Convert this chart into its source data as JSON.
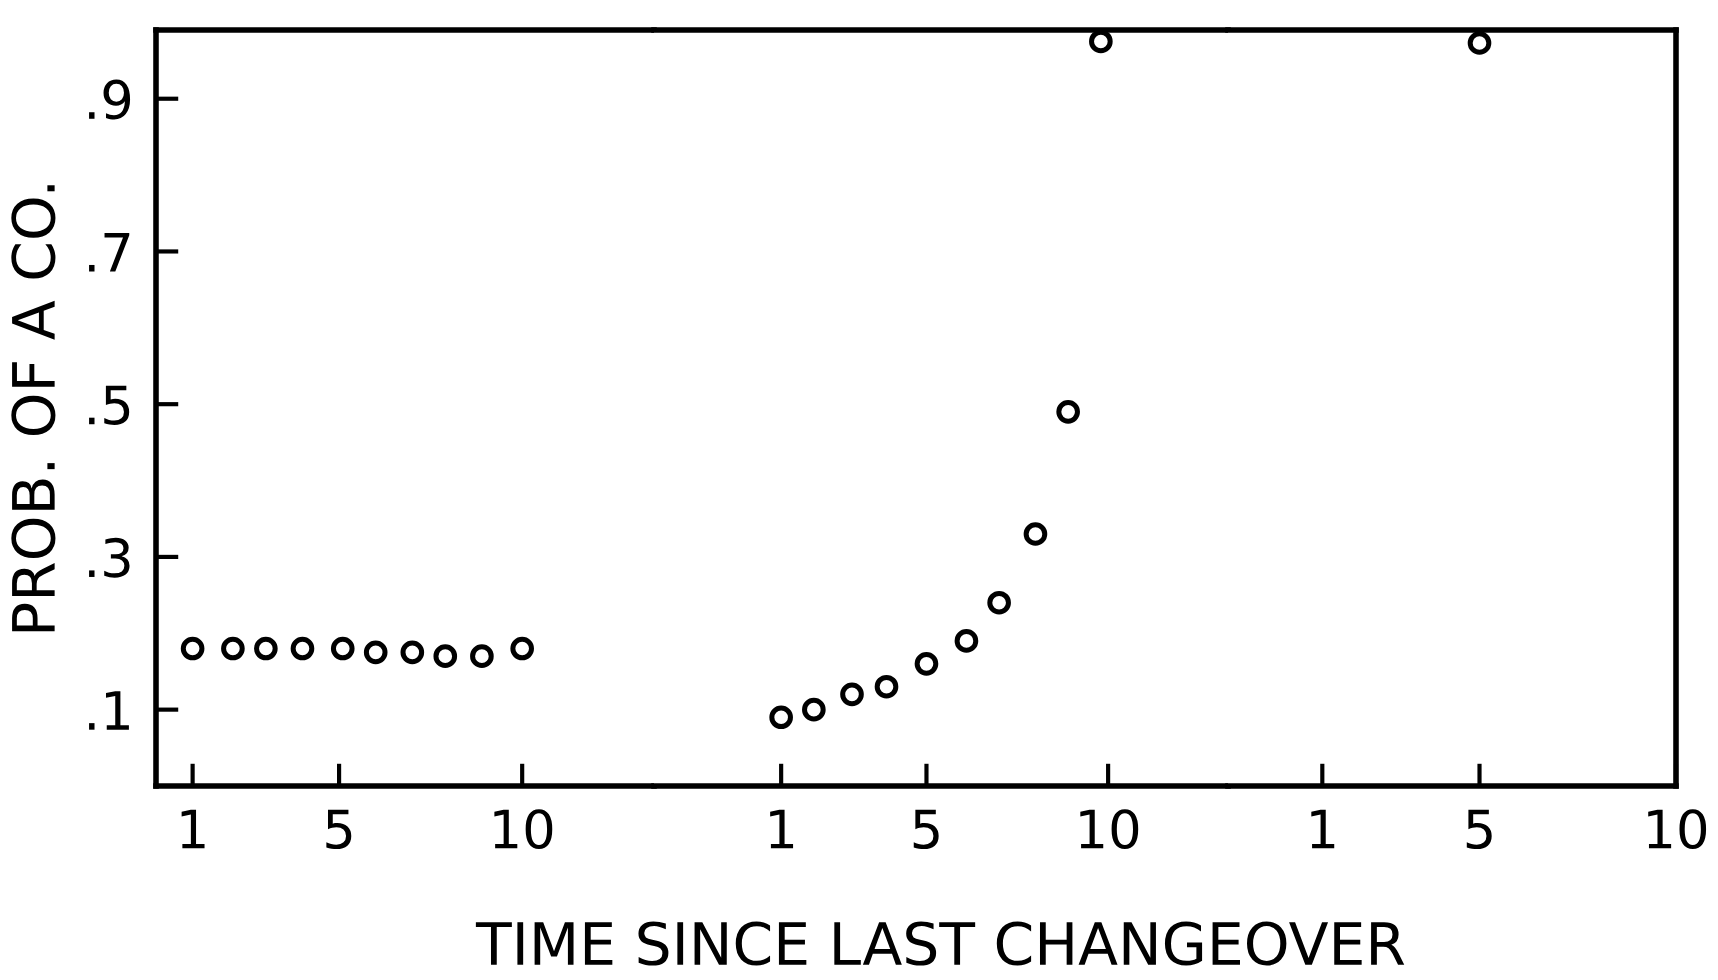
{
  "chart_data": [
    {
      "type": "scatter",
      "ylabel": "PROB. OF A CO.",
      "marker": "circle",
      "x": [
        1,
        2.1,
        3.0,
        4.0,
        5.1,
        6.0,
        7.0,
        7.9,
        8.9,
        10
      ],
      "series": [
        {
          "color": "#000000",
          "values": [
            0.18,
            0.18,
            0.18,
            0.18,
            0.18,
            0.175,
            0.175,
            0.17,
            0.17,
            0.18
          ]
        }
      ],
      "xlim": [
        0,
        13.6
      ],
      "ylim": [
        0,
        0.99
      ],
      "xticks": [
        1,
        5,
        10
      ],
      "yticks": [
        {
          "value": 0.1,
          "label": ".1"
        },
        {
          "value": 0.3,
          "label": ".3"
        },
        {
          "value": 0.5,
          "label": ".5"
        },
        {
          "value": 0.7,
          "label": ".7"
        },
        {
          "value": 0.9,
          "label": ".9"
        }
      ]
    },
    {
      "type": "scatter",
      "xlabel": "TIME SINCE LAST CHANGEOVER",
      "marker": "circle",
      "x": [
        1,
        1.9,
        2.95,
        3.9,
        5.0,
        6.1,
        7.0,
        8.0,
        8.9,
        9.8
      ],
      "series": [
        {
          "color": "#000000",
          "values": [
            0.09,
            0.1,
            0.12,
            0.13,
            0.16,
            0.19,
            0.24,
            0.33,
            0.49,
            0.975
          ]
        }
      ],
      "xlim": [
        -2.5,
        13.3
      ],
      "ylim": [
        0,
        0.99
      ],
      "xticks": [
        1,
        5,
        10
      ],
      "tick_labels": "x"
    },
    {
      "type": "scatter",
      "marker": "circle",
      "x": [
        5
      ],
      "series": [
        {
          "color": "#000000",
          "values": [
            0.973
          ]
        }
      ],
      "xlim": [
        -1.4,
        10
      ],
      "ylim": [
        0,
        0.99
      ],
      "xticks": [
        1,
        5,
        10
      ],
      "tick_labels": "x"
    }
  ]
}
